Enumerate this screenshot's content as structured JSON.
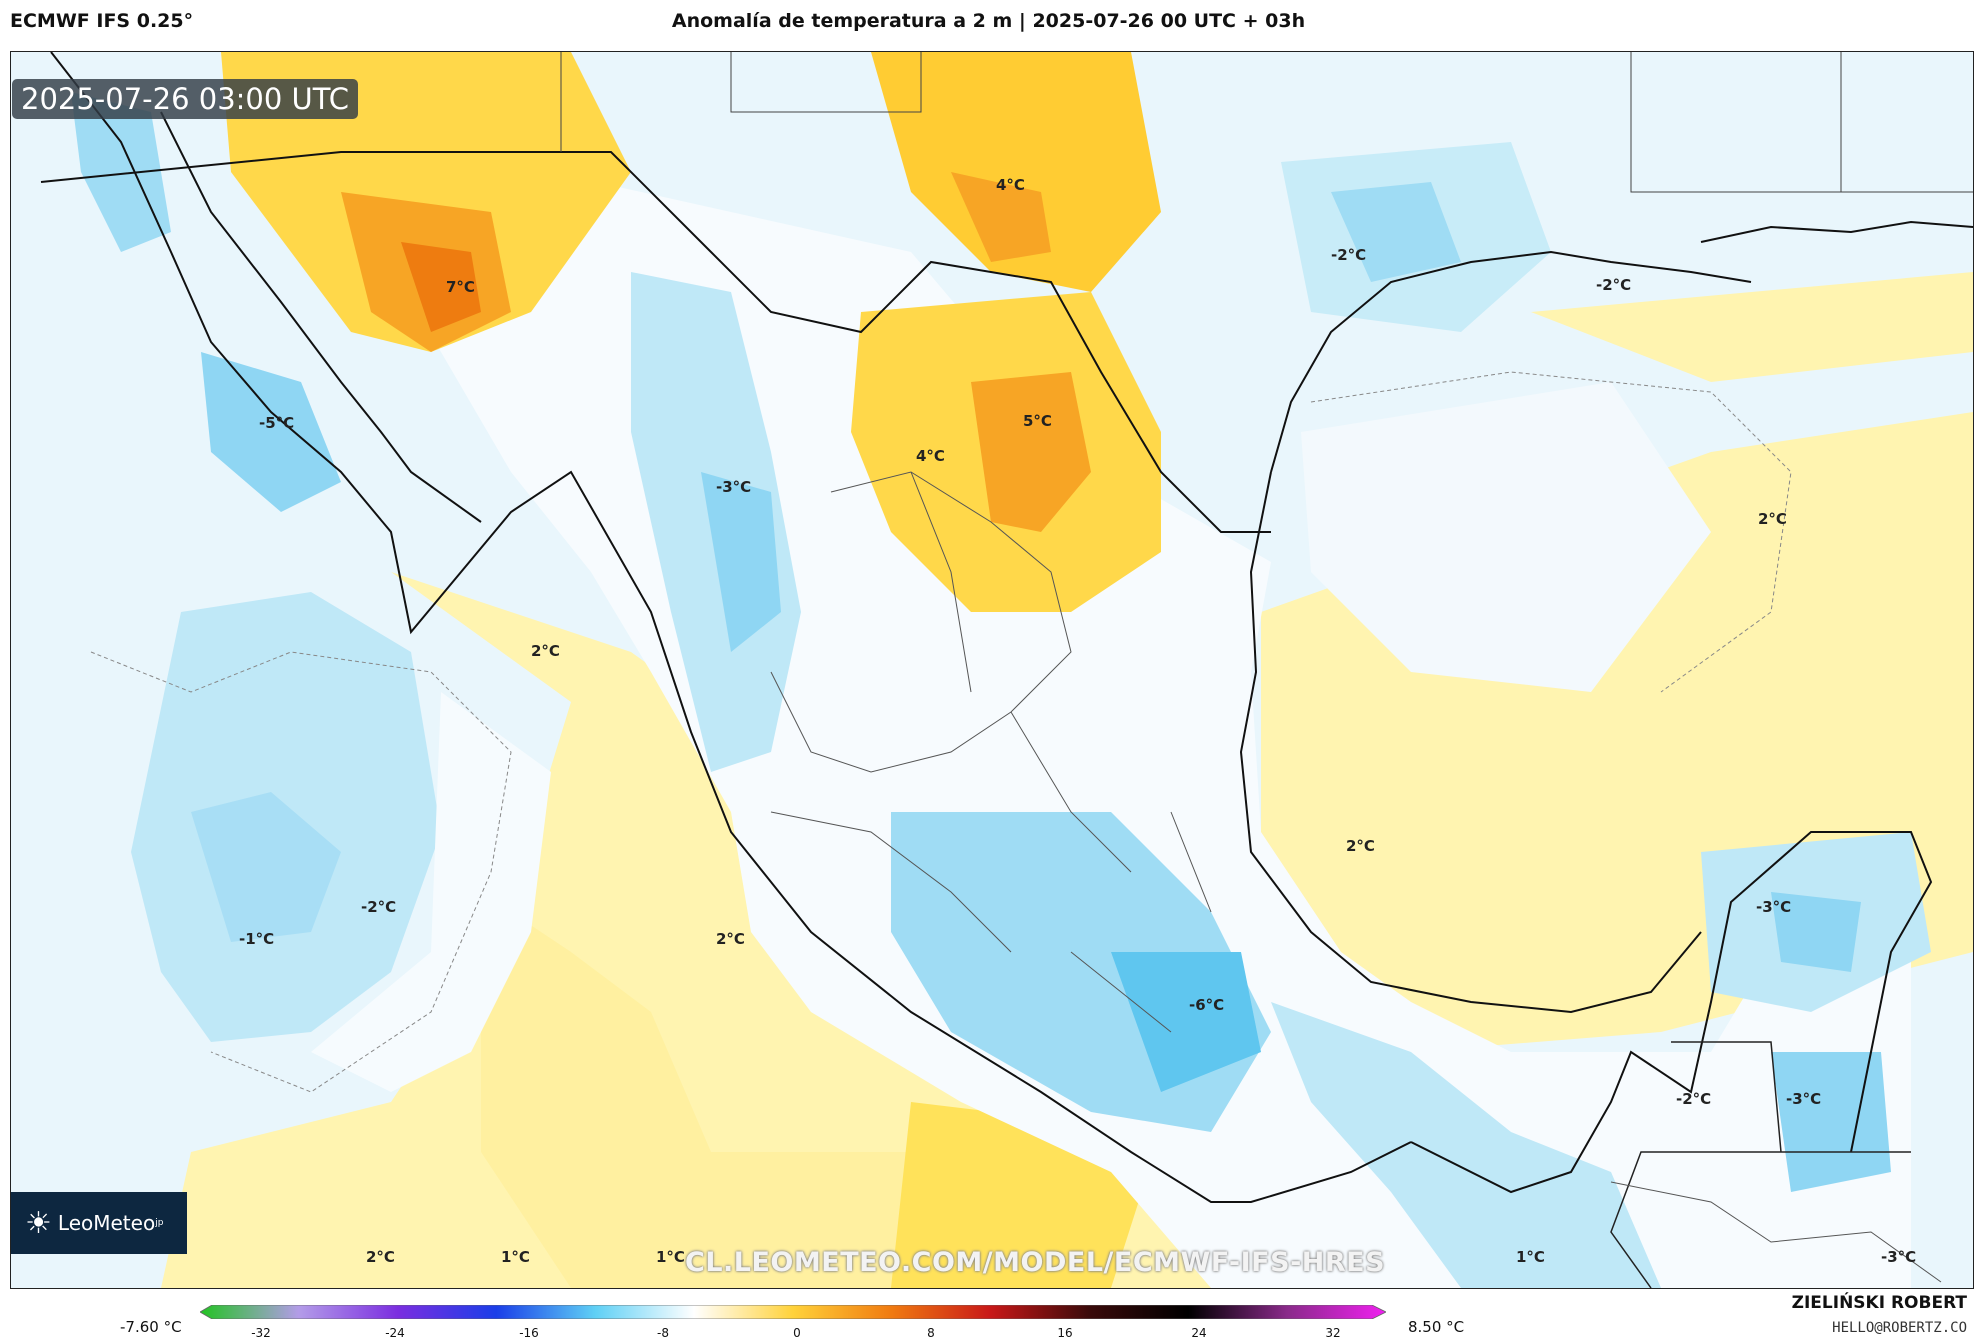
{
  "header": {
    "model": "ECMWF IFS 0.25°",
    "title": "Anomalía de temperatura a 2 m | 2025-07-26 00 UTC + 03h"
  },
  "timestamp": "2025-07-26 03:00 UTC",
  "logo": {
    "name": "LeoMeteo",
    "suffix": "jp"
  },
  "watermark_url": "CL.LEOMETEO.COM/MODEL/ECMWF-IFS-HRES",
  "map_labels": [
    {
      "text": "4°C"
    },
    {
      "text": "7°C"
    },
    {
      "text": "-2°C"
    },
    {
      "text": "-2°C"
    },
    {
      "text": "-5°C"
    },
    {
      "text": "5°C"
    },
    {
      "text": "4°C"
    },
    {
      "text": "-3°C"
    },
    {
      "text": "2°C"
    },
    {
      "text": "2°C"
    },
    {
      "text": "2°C"
    },
    {
      "text": "-2°C"
    },
    {
      "text": "-1°C"
    },
    {
      "text": "2°C"
    },
    {
      "text": "-3°C"
    },
    {
      "text": "-6°C"
    },
    {
      "text": "-2°C"
    },
    {
      "text": "-3°C"
    },
    {
      "text": "2°C"
    },
    {
      "text": "1°C"
    },
    {
      "text": "1°C"
    },
    {
      "text": "1°C"
    },
    {
      "text": "-3°C"
    }
  ],
  "colorbar": {
    "min_label": "-7.60 °C",
    "max_label": "8.50 °C",
    "ticks": [
      "-32",
      "-24",
      "-16",
      "-8",
      "0",
      "8",
      "16",
      "24",
      "32"
    ],
    "colors": [
      "#22c322",
      "#b39ce8",
      "#7b2ee0",
      "#1a3ee8",
      "#5fd0f5",
      "#ffffff",
      "#ffd23a",
      "#f07a10",
      "#c81818",
      "#3a0a0a",
      "#000000",
      "#8a2a8a",
      "#f020f0"
    ]
  },
  "footer": {
    "author": "ZIELIŃSKI ROBERT",
    "email": "HELLO@ROBERTZ.CO"
  }
}
